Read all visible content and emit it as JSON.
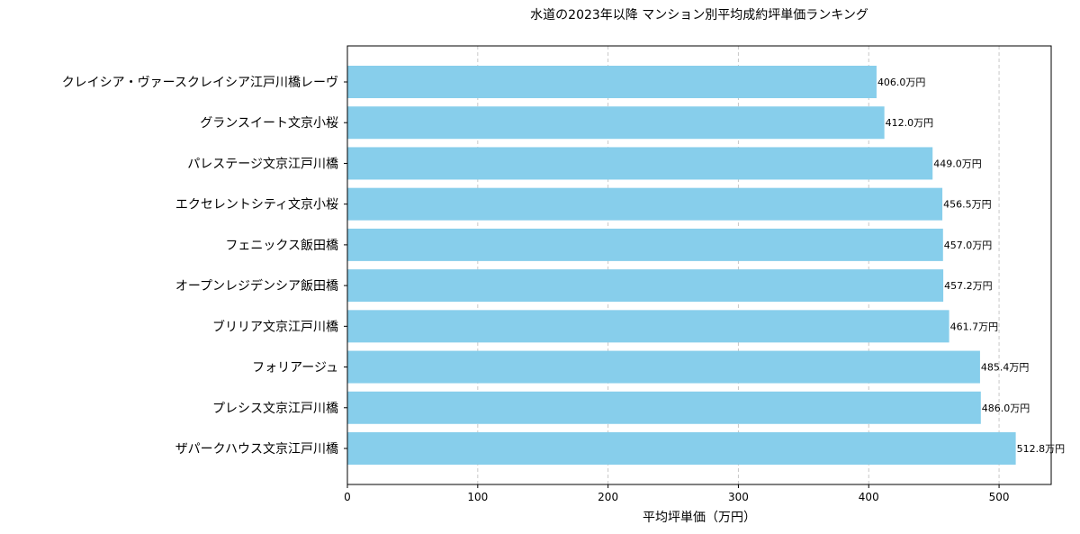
{
  "chart_data": {
    "type": "bar",
    "orientation": "horizontal",
    "title": "水道の2023年以降 マンション別平均成約坪単価ランキング",
    "xlabel": "平均坪単価（万円）",
    "ylabel": "",
    "xlim": [
      0,
      540
    ],
    "xticks": [
      0,
      100,
      200,
      300,
      400,
      500
    ],
    "grid": "x-dashed",
    "bar_color": "#87CEEB",
    "value_suffix": "万円",
    "categories": [
      "クレイシア・ヴァースクレイシア江戸川橋レーヴ",
      "グランスイート文京小桜",
      "パレステージ文京江戸川橋",
      "エクセレントシティ文京小桜",
      "フェニックス飯田橋",
      "オープンレジデンシア飯田橋",
      "ブリリア文京江戸川橋",
      "フォリアージュ",
      "プレシス文京江戸川橋",
      "ザパークハウス文京江戸川橋"
    ],
    "values": [
      406.0,
      412.0,
      449.0,
      456.5,
      457.0,
      457.2,
      461.7,
      485.4,
      486.0,
      512.8
    ],
    "value_labels": [
      "406.0万円",
      "412.0万円",
      "449.0万円",
      "456.5万円",
      "457.0万円",
      "457.2万円",
      "461.7万円",
      "485.4万円",
      "486.0万円",
      "512.8万円"
    ]
  }
}
